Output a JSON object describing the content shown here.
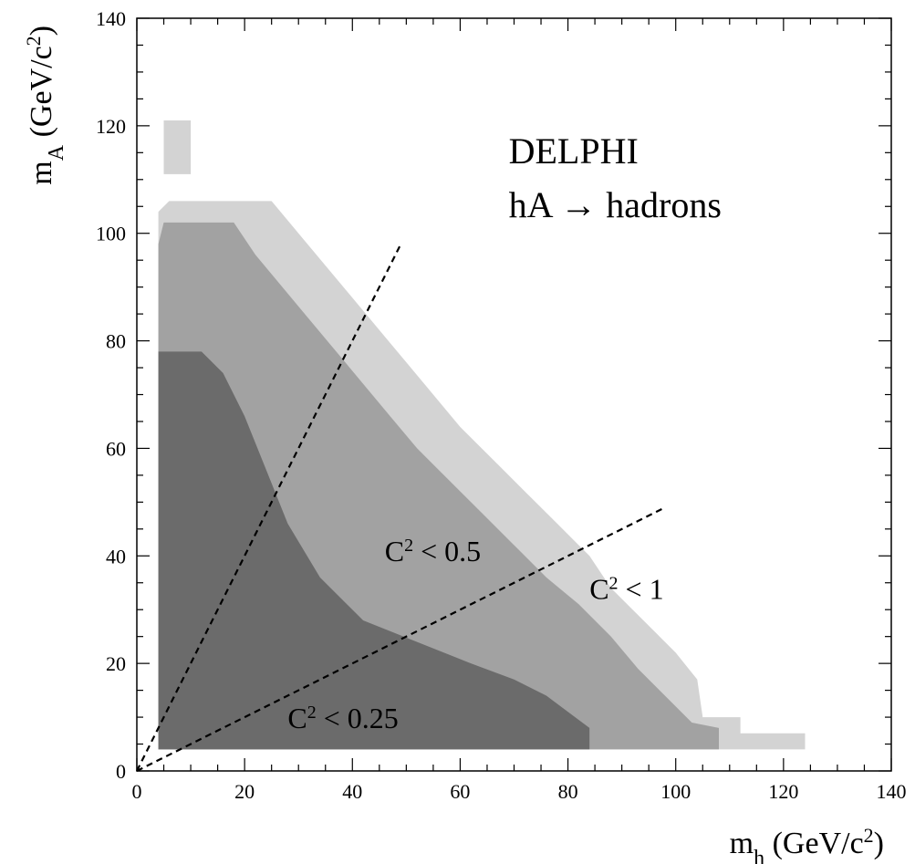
{
  "chart_data": {
    "type": "heatmap",
    "xlim": [
      0,
      140
    ],
    "ylim": [
      0,
      140
    ],
    "x_ticks": [
      0,
      20,
      40,
      60,
      80,
      100,
      120,
      140
    ],
    "y_ticks": [
      0,
      20,
      40,
      60,
      80,
      100,
      120,
      140
    ],
    "x_tick_labels": [
      "0",
      "20",
      "40",
      "60",
      "80",
      "100",
      "120",
      "140"
    ],
    "y_tick_labels": [
      "0",
      "20",
      "40",
      "60",
      "80",
      "100",
      "120",
      "140"
    ],
    "xlabel": {
      "base": "m",
      "sub": "h",
      "unit": " (GeV/c",
      "sup": "2",
      "close": ")"
    },
    "ylabel": {
      "base": "m",
      "sub": "A",
      "unit": " (GeV/c",
      "sup": "2",
      "close": ")"
    },
    "grid": false,
    "legend": "none",
    "colors": {
      "lightest": "#d3d3d3",
      "medium": "#a2a2a2",
      "darkest": "#6b6b6b"
    },
    "regions": [
      {
        "label": "C^2 < 1",
        "color": "#d3d3d3",
        "polygons": [
          [
            [
              4,
              4
            ],
            [
              124,
              4
            ],
            [
              124,
              7
            ],
            [
              112,
              7
            ],
            [
              112,
              10
            ],
            [
              105,
              10
            ],
            [
              104,
              17
            ],
            [
              100,
              22
            ],
            [
              96,
              26
            ],
            [
              92,
              30
            ],
            [
              88,
              34
            ],
            [
              84,
              40
            ],
            [
              78,
              46
            ],
            [
              72,
              52
            ],
            [
              66,
              58
            ],
            [
              60,
              64
            ],
            [
              55,
              70
            ],
            [
              50,
              76
            ],
            [
              45,
              82
            ],
            [
              40,
              88
            ],
            [
              35,
              94
            ],
            [
              30,
              100
            ],
            [
              25,
              106
            ],
            [
              6,
              106
            ],
            [
              4,
              104
            ]
          ],
          [
            [
              5,
              111
            ],
            [
              10,
              111
            ],
            [
              10,
              121
            ],
            [
              5,
              121
            ]
          ]
        ]
      },
      {
        "label": "C^2 < 0.5",
        "color": "#a2a2a2",
        "polygons": [
          [
            [
              4,
              4
            ],
            [
              108,
              4
            ],
            [
              108,
              8
            ],
            [
              103,
              9
            ],
            [
              98,
              14
            ],
            [
              93,
              19
            ],
            [
              88,
              25
            ],
            [
              82,
              31
            ],
            [
              76,
              36
            ],
            [
              70,
              42
            ],
            [
              64,
              48
            ],
            [
              58,
              54
            ],
            [
              52,
              60
            ],
            [
              47,
              66
            ],
            [
              42,
              72
            ],
            [
              37,
              78
            ],
            [
              32,
              84
            ],
            [
              27,
              90
            ],
            [
              22,
              96
            ],
            [
              18,
              102
            ],
            [
              5,
              102
            ],
            [
              4,
              98
            ]
          ]
        ]
      },
      {
        "label": "C^2 < 0.25",
        "color": "#6b6b6b",
        "polygons": [
          [
            [
              4,
              4
            ],
            [
              84,
              4
            ],
            [
              84,
              8
            ],
            [
              80,
              11
            ],
            [
              76,
              14
            ],
            [
              70,
              17
            ],
            [
              62,
              20
            ],
            [
              52,
              24
            ],
            [
              42,
              28
            ],
            [
              34,
              36
            ],
            [
              28,
              46
            ],
            [
              24,
              56
            ],
            [
              20,
              66
            ],
            [
              16,
              74
            ],
            [
              12,
              78
            ],
            [
              4,
              78
            ]
          ]
        ]
      }
    ],
    "lines": [
      {
        "name": "line-1",
        "x": [
          0,
          49
        ],
        "y": [
          0,
          98
        ],
        "style": "dashed"
      },
      {
        "name": "line-2",
        "x": [
          0,
          98
        ],
        "y": [
          0,
          49
        ],
        "style": "dashed"
      }
    ],
    "annotations": [
      {
        "id": "title",
        "text": "DELPHI",
        "x": 69,
        "y": 113,
        "size": "big"
      },
      {
        "id": "process",
        "text": "hA → hadrons",
        "x": 69,
        "y": 103,
        "size": "big"
      },
      {
        "id": "c2-05",
        "base": "C",
        "sup": "2",
        "rest": " < 0.5",
        "x": 46,
        "y": 39
      },
      {
        "id": "c2-1",
        "base": "C",
        "sup": "2",
        "rest": " < 1",
        "x": 84,
        "y": 32
      },
      {
        "id": "c2-025",
        "base": "C",
        "sup": "2",
        "rest": " < 0.25",
        "x": 28,
        "y": 8
      }
    ]
  }
}
